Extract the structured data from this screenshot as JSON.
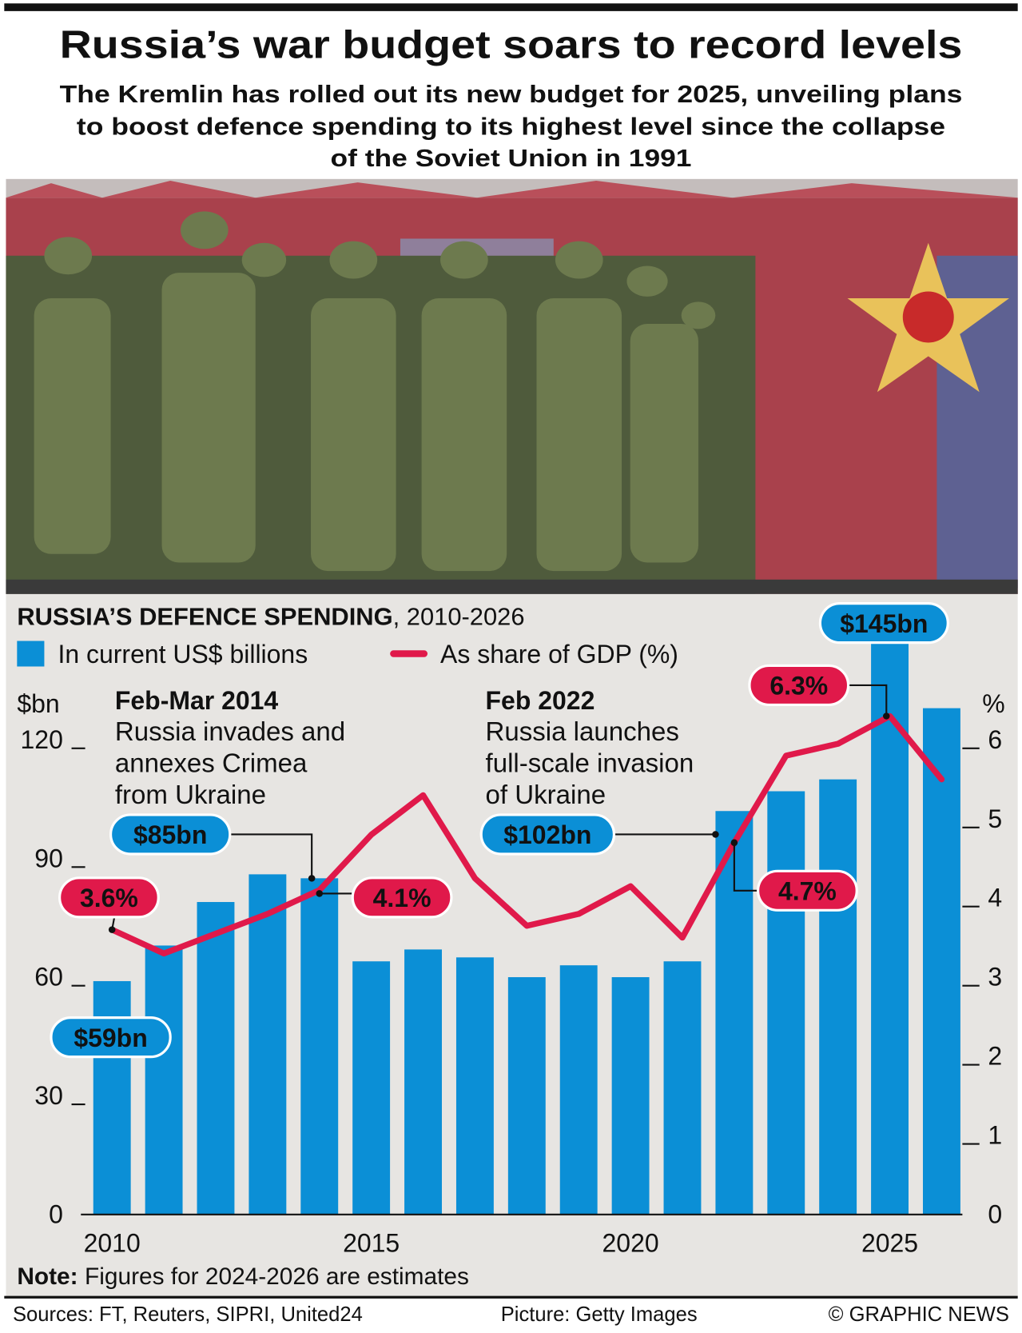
{
  "header": {
    "title": "Russia’s war budget soars to record levels",
    "subtitle": [
      "The Kremlin has rolled out its new budget for 2025, unveiling plans",
      "to boost defence spending to its highest level since the collapse",
      "of the Soviet Union in 1991"
    ]
  },
  "chart_data": {
    "type": "bar-line",
    "title": "RUSSIA’S DEFENCE SPENDING",
    "title_period": ", 2010-2026",
    "y_label": "$bn",
    "y2_label": "%",
    "x": [
      2010,
      2011,
      2012,
      2013,
      2014,
      2015,
      2016,
      2017,
      2018,
      2019,
      2020,
      2021,
      2022,
      2023,
      2024,
      2025,
      2026
    ],
    "xlim": [
      2009.4,
      2026.4
    ],
    "xticks": [
      2010,
      2015,
      2020,
      2025
    ],
    "ylim": [
      0,
      145
    ],
    "yticks": [
      0,
      30,
      60,
      90,
      120
    ],
    "y2lim": [
      0,
      7.25
    ],
    "y2ticks": [
      0,
      1,
      2,
      3,
      4,
      5,
      6
    ],
    "series": [
      {
        "name": "In current US$ billions",
        "color": "#0b8fd6",
        "type": "bar",
        "values": [
          59,
          68,
          79,
          86,
          85,
          64,
          67,
          65,
          60,
          63,
          60,
          64,
          102,
          107,
          110,
          145,
          128
        ],
        "value_labels": [
          "$59bn",
          null,
          null,
          null,
          "$85bn",
          null,
          null,
          null,
          null,
          null,
          null,
          null,
          "$102bn",
          null,
          null,
          "$145bn",
          null
        ]
      },
      {
        "name": "As share of GDP (%)",
        "color": "#e0194a",
        "type": "line",
        "axis": "y2",
        "values": [
          3.6,
          3.3,
          3.55,
          3.8,
          4.1,
          4.8,
          5.3,
          4.25,
          3.65,
          3.8,
          4.15,
          3.5,
          4.7,
          5.8,
          5.95,
          6.3,
          5.5
        ],
        "value_labels": [
          "3.6%",
          null,
          null,
          null,
          "4.1%",
          null,
          null,
          null,
          null,
          null,
          null,
          null,
          "4.7%",
          null,
          null,
          "6.3%",
          null
        ]
      }
    ],
    "annotations": [
      {
        "title": "Feb-Mar 2014",
        "text": [
          "Russia invades and",
          "annexes Crimea",
          "from Ukraine"
        ]
      },
      {
        "title": "Feb 2022",
        "text": [
          "Russia launches",
          "full-scale invasion",
          "of Ukraine"
        ]
      }
    ],
    "note_label": "Note:",
    "note": "Figures for 2024-2026 are estimates"
  },
  "footer": {
    "sources": "Sources: FT, Reuters, SIPRI, United24",
    "picture": "Picture: Getty Images",
    "credit": "© GRAPHIC NEWS"
  }
}
